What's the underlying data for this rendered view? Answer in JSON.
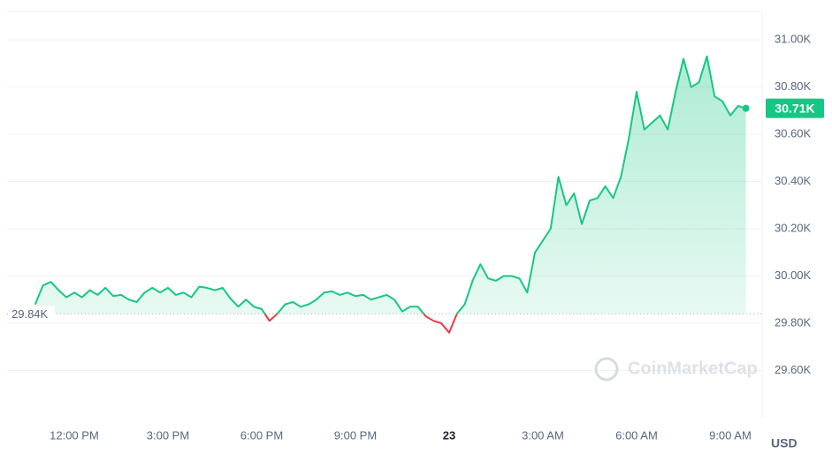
{
  "chart_data": {
    "type": "line",
    "color": "#16c784",
    "below_color": "#ea3943",
    "currency": "USD",
    "watermark": "CoinMarketCap",
    "x": [
      10.75,
      11,
      11.25,
      11.5,
      11.75,
      12,
      12.25,
      12.5,
      12.75,
      13,
      13.25,
      13.5,
      13.75,
      14,
      14.25,
      14.5,
      14.75,
      15,
      15.25,
      15.5,
      15.75,
      16,
      16.25,
      16.5,
      16.75,
      17,
      17.25,
      17.5,
      17.75,
      18,
      18.25,
      18.5,
      18.75,
      19,
      19.25,
      19.5,
      19.75,
      20,
      20.25,
      20.5,
      20.75,
      21,
      21.25,
      21.5,
      21.75,
      22,
      22.25,
      22.5,
      22.75,
      23,
      23.25,
      23.5,
      23.75,
      24,
      24.25,
      24.5,
      24.75,
      25,
      25.25,
      25.5,
      25.75,
      26,
      26.25,
      26.5,
      26.75,
      27,
      27.25,
      27.5,
      27.75,
      28,
      28.25,
      28.5,
      28.75,
      29,
      29.25,
      29.5,
      29.75,
      30,
      30.25,
      30.5,
      30.75,
      31,
      31.25,
      31.5,
      31.75,
      32,
      32.25,
      32.5,
      32.75,
      33,
      33.25,
      33.5
    ],
    "values": [
      29880,
      29960,
      29975,
      29940,
      29910,
      29930,
      29910,
      29940,
      29920,
      29950,
      29915,
      29920,
      29900,
      29890,
      29930,
      29950,
      29930,
      29950,
      29920,
      29930,
      29910,
      29955,
      29950,
      29940,
      29950,
      29905,
      29870,
      29900,
      29870,
      29860,
      29810,
      29840,
      29880,
      29890,
      29870,
      29880,
      29900,
      29930,
      29935,
      29920,
      29930,
      29915,
      29920,
      29900,
      29910,
      29920,
      29900,
      29850,
      29870,
      29870,
      29830,
      29810,
      29800,
      29760,
      29840,
      29880,
      29980,
      30050,
      29990,
      29980,
      30000,
      30000,
      29990,
      29930,
      30100,
      30150,
      30200,
      30420,
      30300,
      30350,
      30220,
      30320,
      30330,
      30380,
      30330,
      30420,
      30580,
      30780,
      30620,
      30650,
      30680,
      30620,
      30780,
      30920,
      30800,
      30820,
      30930,
      30760,
      30740,
      30680,
      30720,
      30710
    ],
    "reference": {
      "value": 29840,
      "label": "29.84K"
    },
    "last_price": {
      "value": 30710,
      "label": "30.71K"
    },
    "xlim": [
      9.85,
      34.02
    ],
    "xticks": [
      {
        "value": 12,
        "label": "12:00 PM"
      },
      {
        "value": 15,
        "label": "3:00 PM"
      },
      {
        "value": 18,
        "label": "6:00 PM"
      },
      {
        "value": 21,
        "label": "9:00 PM"
      },
      {
        "value": 24,
        "label": "23"
      },
      {
        "value": 27,
        "label": "3:00 AM"
      },
      {
        "value": 30,
        "label": "6:00 AM"
      },
      {
        "value": 33,
        "label": "9:00 AM"
      }
    ],
    "ylim": [
      29400,
      31120
    ],
    "yticks": [
      {
        "value": 29600,
        "label": "29.60K"
      },
      {
        "value": 29800,
        "label": "29.80K"
      },
      {
        "value": 30000,
        "label": "30.00K"
      },
      {
        "value": 30200,
        "label": "30.20K"
      },
      {
        "value": 30400,
        "label": "30.40K"
      },
      {
        "value": 30600,
        "label": "30.60K"
      },
      {
        "value": 30800,
        "label": "30.80K"
      },
      {
        "value": 31000,
        "label": "31.00K"
      }
    ],
    "grid": true
  }
}
